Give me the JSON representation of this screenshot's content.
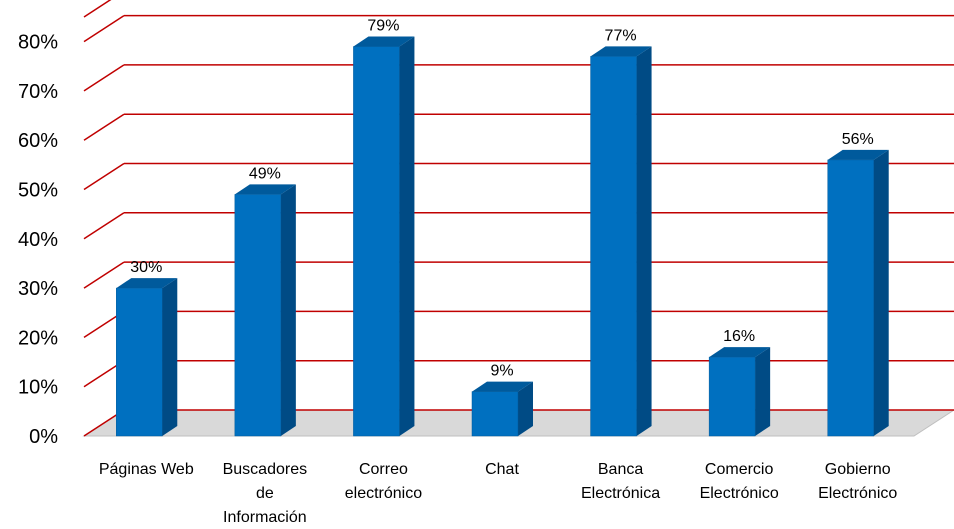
{
  "chart_data": {
    "type": "bar",
    "style": "3d-column",
    "categories": [
      [
        "Páginas Web"
      ],
      [
        "Buscadores",
        "de",
        "Información"
      ],
      [
        "Correo",
        "electrónico"
      ],
      [
        "Chat"
      ],
      [
        "Banca",
        "Electrónica"
      ],
      [
        "Comercio",
        "Electrónico"
      ],
      [
        "Gobierno",
        "Electrónico"
      ]
    ],
    "values": [
      30,
      49,
      79,
      9,
      77,
      16,
      56
    ],
    "data_labels": [
      "30%",
      "49%",
      "79%",
      "9%",
      "77%",
      "16%",
      "56%"
    ],
    "ylim": [
      0,
      85
    ],
    "yticks": [
      0,
      10,
      20,
      30,
      40,
      50,
      60,
      70,
      80
    ],
    "ytick_labels": [
      "0%",
      "10%",
      "20%",
      "30%",
      "40%",
      "50%",
      "60%",
      "70%",
      "80%"
    ],
    "grid": true,
    "legend": "none",
    "colors": {
      "bar_front": "#0070C0",
      "bar_side": "#004B85",
      "bar_top": "#005A9C",
      "gridline": "#C00000",
      "floor": "#D9D9D9"
    }
  }
}
